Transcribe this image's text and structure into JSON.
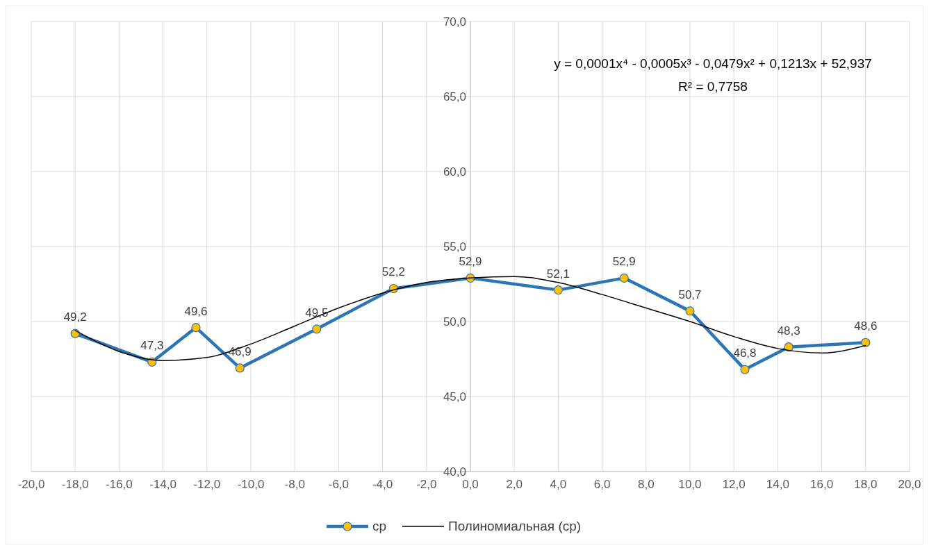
{
  "chart_data": {
    "type": "line",
    "annotations": [
      "y = 0,0001x⁴ - 0,0005x³ - 0,0479x² + 0,1213x + 52,937",
      "R² = 0,7758"
    ],
    "series": [
      {
        "name": "ср",
        "color": "#2e75b6",
        "marker": "circle",
        "x": [
          -18,
          -14.5,
          -12.5,
          -10.5,
          -7,
          -3.5,
          0,
          4,
          7,
          10,
          12.5,
          14.5,
          18
        ],
        "values": [
          49.2,
          47.3,
          49.6,
          46.9,
          49.5,
          52.2,
          52.9,
          52.1,
          52.9,
          50.7,
          46.8,
          48.3,
          48.6
        ],
        "value_labels": [
          "49,2",
          "47,3",
          "49,6",
          "46,9",
          "49,5",
          "52,2",
          "52,9",
          "52,1",
          "52,9",
          "50,7",
          "46,8",
          "48,3",
          "48,6"
        ]
      },
      {
        "name": "Полиномиальная (ср)",
        "color": "#000000",
        "marker": "none",
        "x": [
          -18,
          -16,
          -14,
          -12,
          -10,
          -8,
          -6,
          -4,
          -2,
          0,
          2,
          4,
          6,
          8,
          10,
          12,
          14,
          16,
          18
        ],
        "values": [
          49.4,
          48.0,
          47.4,
          47.6,
          48.5,
          49.7,
          50.9,
          51.9,
          52.6,
          52.9,
          53.0,
          52.6,
          51.8,
          50.9,
          50.0,
          49.0,
          48.2,
          47.9,
          48.4
        ]
      }
    ],
    "xlim": [
      -20,
      20
    ],
    "xticks": [
      {
        "value": -20,
        "label": "-20,0"
      },
      {
        "value": -18,
        "label": "-18,0"
      },
      {
        "value": -16,
        "label": "-16,0"
      },
      {
        "value": -14,
        "label": "-14,0"
      },
      {
        "value": -12,
        "label": "-12,0"
      },
      {
        "value": -10,
        "label": "-10,0"
      },
      {
        "value": -8,
        "label": "-8,0"
      },
      {
        "value": -6,
        "label": "-6,0"
      },
      {
        "value": -4,
        "label": "-4,0"
      },
      {
        "value": -2,
        "label": "-2,0"
      },
      {
        "value": 0,
        "label": "0,0"
      },
      {
        "value": 2,
        "label": "2,0"
      },
      {
        "value": 4,
        "label": "4,0"
      },
      {
        "value": 6,
        "label": "6,0"
      },
      {
        "value": 8,
        "label": "8,0"
      },
      {
        "value": 10,
        "label": "10,0"
      },
      {
        "value": 12,
        "label": "12,0"
      },
      {
        "value": 14,
        "label": "14,0"
      },
      {
        "value": 16,
        "label": "16,0"
      },
      {
        "value": 18,
        "label": "18,0"
      },
      {
        "value": 20,
        "label": "20,0"
      }
    ],
    "ylim": [
      40,
      70
    ],
    "yticks": [
      {
        "value": 40,
        "label": "40,0"
      },
      {
        "value": 45,
        "label": "45,0"
      },
      {
        "value": 50,
        "label": "50,0"
      },
      {
        "value": 55,
        "label": "55,0"
      },
      {
        "value": 60,
        "label": "60,0"
      },
      {
        "value": 65,
        "label": "65,0"
      },
      {
        "value": 70,
        "label": "70,0"
      }
    ],
    "grid": true,
    "legend": "bottom"
  }
}
